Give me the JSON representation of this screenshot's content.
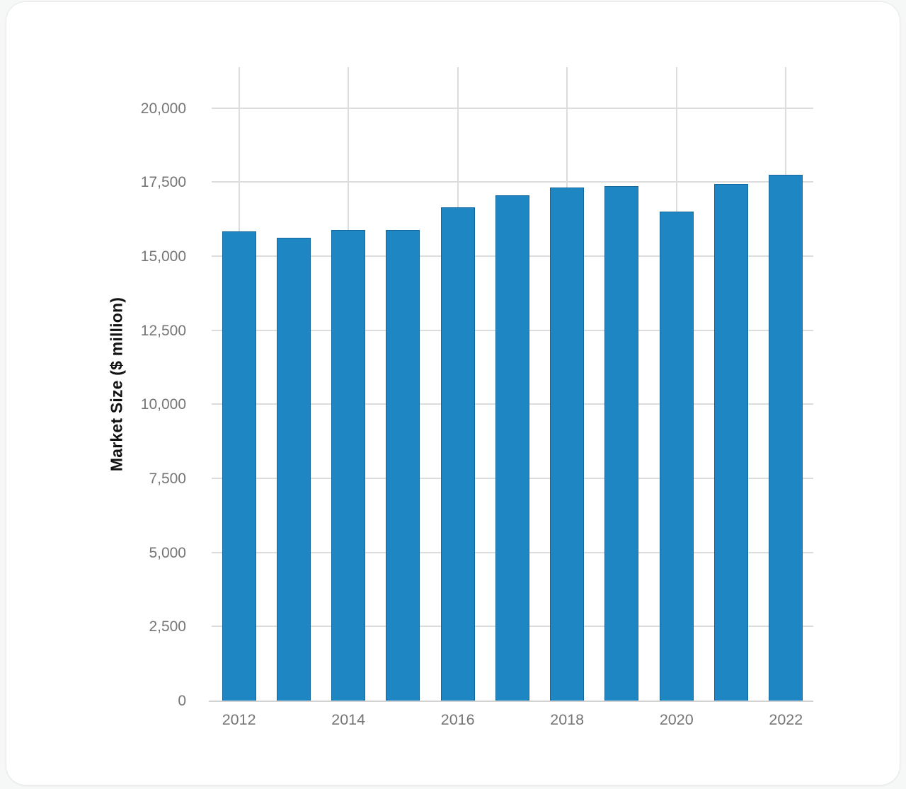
{
  "chart_data": {
    "type": "bar",
    "title": "",
    "xlabel": "",
    "ylabel": "Market Size ($ million)",
    "categories": [
      "2012",
      "2013",
      "2014",
      "2015",
      "2016",
      "2017",
      "2018",
      "2019",
      "2020",
      "2021",
      "2022"
    ],
    "values": [
      15850,
      15650,
      15900,
      15900,
      16680,
      17070,
      17330,
      17380,
      16530,
      17460,
      17760
    ],
    "x_tick_labels": [
      "2012",
      "2014",
      "2016",
      "2018",
      "2020",
      "2022"
    ],
    "x_tick_every": 2,
    "y_ticks": [
      0,
      2500,
      5000,
      7500,
      10000,
      12500,
      15000,
      17500,
      20000
    ],
    "y_tick_labels": [
      "0",
      "2,500",
      "5,000",
      "7,500",
      "10,000",
      "12,500",
      "15,000",
      "17,500",
      "20,000"
    ],
    "ylim": [
      0,
      21400
    ],
    "grid": true,
    "legend": false,
    "colors": {
      "bar": "#1d86c3",
      "bar_border": "#13679c",
      "gridline": "#dcdcdc",
      "axis_line": "#d2d2d2",
      "tick_label": "#757575",
      "axis_title": "#111111",
      "card_bg": "#ffffff",
      "card_border": "#e8e8e8",
      "page_bg": "#f6f7f7"
    }
  }
}
